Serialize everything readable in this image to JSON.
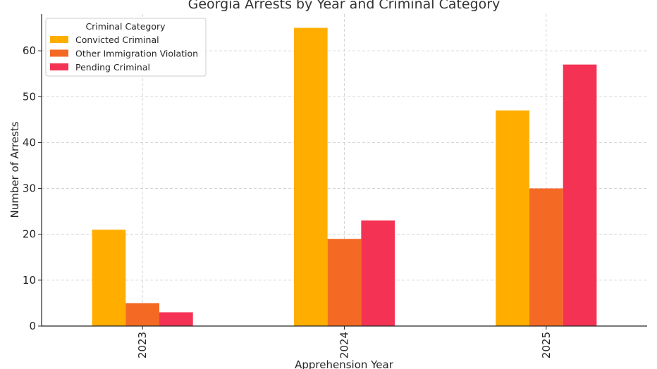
{
  "chart_data": {
    "type": "bar",
    "title": "Georgia Arrests by Year and Criminal Category",
    "xlabel": "Apprehension Year",
    "ylabel": "Number of Arrests",
    "categories": [
      "2023",
      "2024",
      "2025"
    ],
    "series": [
      {
        "name": "Convicted Criminal",
        "values": [
          21,
          65,
          47
        ],
        "color": "#FFAE00"
      },
      {
        "name": "Other Immigration Violation",
        "values": [
          5,
          19,
          30
        ],
        "color": "#F46A25"
      },
      {
        "name": "Pending Criminal",
        "values": [
          3,
          23,
          57
        ],
        "color": "#F43254"
      }
    ],
    "ylim": [
      0,
      68
    ],
    "yticks": [
      0,
      10,
      20,
      30,
      40,
      50,
      60
    ],
    "grid": true,
    "legend": {
      "title": "Criminal Category",
      "placement": "top-left"
    }
  }
}
